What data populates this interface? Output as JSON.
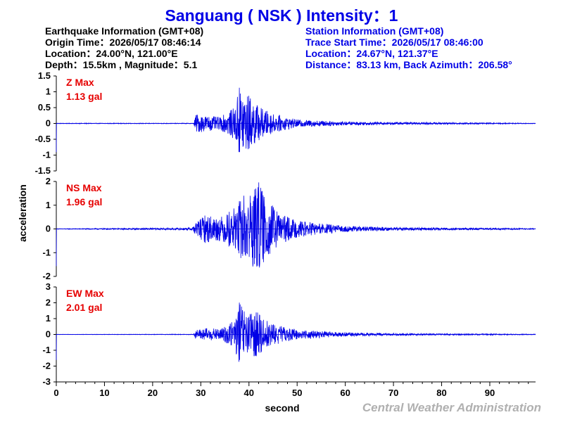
{
  "title": "Sanguang ( NSK ) Intensity：1",
  "earthquake": {
    "heading": "Earthquake Information  (GMT+08)",
    "origin_time": "Origin Time：2026/05/17 08:46:14",
    "location": "Location：24.00°N, 121.00°E",
    "depth_mag": "Depth：15.5km , Magnitude：5.1"
  },
  "station": {
    "heading": "Station Information  (GMT+08)",
    "trace_start": "Trace Start Time：2026/05/17 08:46:00",
    "location": "Location：24.67°N, 121.37°E",
    "distance": "Distance：83.13 km, Back Azimuth：206.58°"
  },
  "ylabel": "acceleration",
  "xlabel": "second",
  "agency": "Central Weather Administration",
  "colors": {
    "title": "#0000e6",
    "trace": "#0000e6",
    "max_label": "#e60000",
    "agency": "#b0b0b0"
  },
  "chart_data": {
    "type": "line",
    "x_range": [
      0,
      99.5
    ],
    "x_ticks": [
      0,
      10,
      20,
      30,
      40,
      50,
      60,
      70,
      80,
      90
    ],
    "xlabel": "second",
    "ylabel": "acceleration",
    "grid": false,
    "panels": [
      {
        "component": "Z",
        "max_title": "Z Max",
        "max_value": "1.13 gal",
        "ylim": [
          -1.5,
          1.5
        ],
        "y_ticks": [
          -1.5,
          -1,
          -0.5,
          0,
          0.5,
          1,
          1.5
        ],
        "peak": 1.13,
        "envelope": [
          [
            0,
            0.01
          ],
          [
            28.5,
            0.01
          ],
          [
            29,
            0.3
          ],
          [
            31,
            0.25
          ],
          [
            34,
            0.2
          ],
          [
            37,
            0.5
          ],
          [
            38,
            1.13
          ],
          [
            40,
            0.9
          ],
          [
            42,
            0.55
          ],
          [
            45,
            0.3
          ],
          [
            50,
            0.12
          ],
          [
            60,
            0.06
          ],
          [
            70,
            0.04
          ],
          [
            80,
            0.03
          ],
          [
            90,
            0.02
          ],
          [
            99.5,
            0.01
          ]
        ]
      },
      {
        "component": "NS",
        "max_title": "NS Max",
        "max_value": "1.96 gal",
        "ylim": [
          -2,
          2
        ],
        "y_ticks": [
          -2,
          -1,
          0,
          1,
          2
        ],
        "peak": 1.96,
        "envelope": [
          [
            0,
            0.01
          ],
          [
            28,
            0.05
          ],
          [
            29,
            0.3
          ],
          [
            31,
            0.6
          ],
          [
            34,
            0.5
          ],
          [
            37,
            0.9
          ],
          [
            39,
            1.5
          ],
          [
            41,
            1.7
          ],
          [
            42,
            1.96
          ],
          [
            44,
            1.2
          ],
          [
            47,
            0.6
          ],
          [
            50,
            0.35
          ],
          [
            60,
            0.12
          ],
          [
            70,
            0.07
          ],
          [
            80,
            0.05
          ],
          [
            90,
            0.04
          ],
          [
            99.5,
            0.02
          ]
        ]
      },
      {
        "component": "EW",
        "max_title": "EW Max",
        "max_value": "2.01 gal",
        "ylim": [
          -3,
          3
        ],
        "y_ticks": [
          -3,
          -2,
          -1,
          0,
          1,
          2,
          3
        ],
        "peak": 2.01,
        "envelope": [
          [
            0,
            0.01
          ],
          [
            28.5,
            0.02
          ],
          [
            29,
            0.3
          ],
          [
            31,
            0.4
          ],
          [
            34,
            0.35
          ],
          [
            37,
            0.9
          ],
          [
            38,
            2.01
          ],
          [
            40,
            1.3
          ],
          [
            42,
            1.5
          ],
          [
            44,
            0.8
          ],
          [
            47,
            0.5
          ],
          [
            50,
            0.3
          ],
          [
            60,
            0.12
          ],
          [
            70,
            0.07
          ],
          [
            80,
            0.05
          ],
          [
            90,
            0.04
          ],
          [
            99.5,
            0.02
          ]
        ]
      }
    ]
  }
}
